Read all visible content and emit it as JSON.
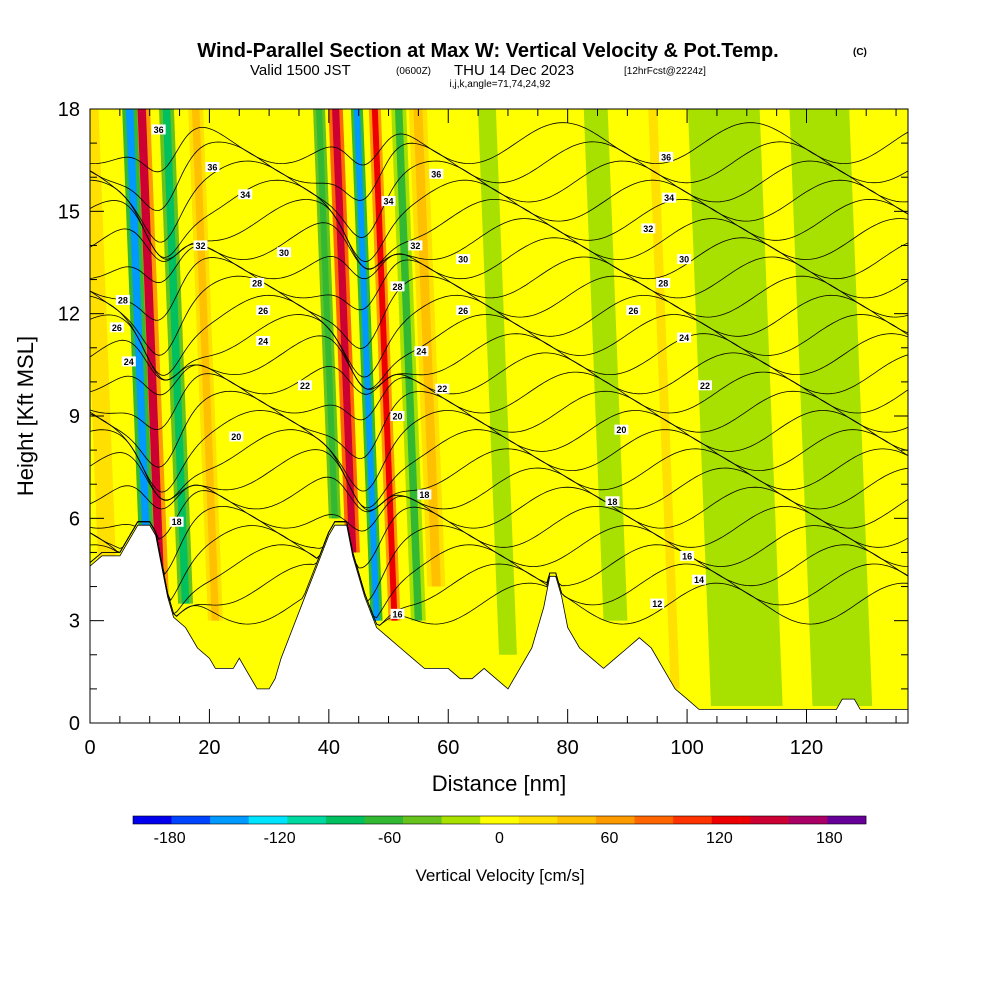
{
  "chart_data": {
    "type": "heatmap",
    "title": "Wind-Parallel Section at Max W: Vertical Velocity & Pot.Temp.",
    "title_tag": "(C)",
    "subtitle_main": "Valid 1500 JST",
    "subtitle_z": "(0600Z)",
    "subtitle_date": "THU 14 Dec 2023",
    "subtitle_fcst": "[12hrFcst@2224z]",
    "index_line": "i,j,k,angle=71,74,24,92",
    "xlabel": "Distance [nm]",
    "ylabel": "Height [Kft MSL]",
    "xlim": [
      0,
      137
    ],
    "ylim": [
      0,
      18
    ],
    "x_ticks": [
      "0",
      "20",
      "40",
      "60",
      "80",
      "100",
      "120"
    ],
    "y_ticks": [
      "0",
      "3",
      "6",
      "9",
      "12",
      "15",
      "18"
    ],
    "colorbar": {
      "label": "Vertical Velocity [cm/s]",
      "range": [
        -200,
        200
      ],
      "ticks": [
        "-180",
        "-120",
        "-60",
        "0",
        "60",
        "120",
        "180"
      ],
      "colors": [
        "#0000ee",
        "#0044ff",
        "#0099ff",
        "#00e5ff",
        "#00d9a0",
        "#00c060",
        "#33b833",
        "#66c21c",
        "#a8e000",
        "#ffff00",
        "#ffe000",
        "#ffc000",
        "#ff9900",
        "#ff6600",
        "#ff3300",
        "#ee0000",
        "#cc0033",
        "#aa0066",
        "#660099"
      ]
    },
    "bands": [
      {
        "x": 12,
        "w": 2.8,
        "w_cms": 145,
        "z0": 2.8
      },
      {
        "x": 9.5,
        "w": 2.5,
        "w_cms": -140,
        "z0": 5
      },
      {
        "x": 16,
        "w": 2.5,
        "w_cms": -75,
        "z0": 3.5
      },
      {
        "x": 21,
        "w": 2.5,
        "w_cms": 50,
        "z0": 3
      },
      {
        "x": 44,
        "w": 2.4,
        "w_cms": 150,
        "z0": 5
      },
      {
        "x": 48,
        "w": 2,
        "w_cms": -145,
        "z0": 3
      },
      {
        "x": 51,
        "w": 2,
        "w_cms": 135,
        "z0": 3
      },
      {
        "x": 55,
        "w": 2.5,
        "w_cms": -55,
        "z0": 3
      },
      {
        "x": 58,
        "w": 3,
        "w_cms": 45,
        "z0": 4
      },
      {
        "x": 41,
        "w": 2,
        "w_cms": -70,
        "z0": 6
      },
      {
        "x": 3,
        "w": 3,
        "w_cms": 30,
        "z0": 4
      },
      {
        "x": 70,
        "w": 6,
        "w_cms": -15,
        "z0": 2
      },
      {
        "x": 88,
        "w": 8,
        "w_cms": -20,
        "z0": 3
      },
      {
        "x": 98,
        "w": 3,
        "w_cms": 20,
        "z0": 1
      },
      {
        "x": 110,
        "w": 12,
        "w_cms": -25,
        "z0": 0.5
      },
      {
        "x": 126,
        "w": 10,
        "w_cms": -22,
        "z0": 0.5
      }
    ],
    "terrain": [
      [
        0,
        4.6
      ],
      [
        2,
        4.9
      ],
      [
        5,
        4.9
      ],
      [
        6,
        5.2
      ],
      [
        7,
        5.5
      ],
      [
        8,
        5.8
      ],
      [
        10,
        5.8
      ],
      [
        11,
        5.5
      ],
      [
        12,
        4.6
      ],
      [
        13,
        3.7
      ],
      [
        14,
        3.1
      ],
      [
        16,
        2.8
      ],
      [
        18,
        2.2
      ],
      [
        20,
        1.9
      ],
      [
        21,
        1.6
      ],
      [
        24,
        1.6
      ],
      [
        25,
        1.9
      ],
      [
        26,
        1.6
      ],
      [
        27,
        1.3
      ],
      [
        28,
        1
      ],
      [
        30,
        1
      ],
      [
        31,
        1.3
      ],
      [
        32,
        1.9
      ],
      [
        34,
        2.8
      ],
      [
        36,
        3.7
      ],
      [
        38,
        4.6
      ],
      [
        40,
        5.5
      ],
      [
        41,
        5.8
      ],
      [
        43,
        5.8
      ],
      [
        44,
        4.9
      ],
      [
        46,
        3.7
      ],
      [
        48,
        2.8
      ],
      [
        50,
        2.5
      ],
      [
        52,
        2.2
      ],
      [
        54,
        1.9
      ],
      [
        56,
        1.6
      ],
      [
        58,
        1.6
      ],
      [
        60,
        1.6
      ],
      [
        62,
        1.3
      ],
      [
        64,
        1.3
      ],
      [
        66,
        1.6
      ],
      [
        68,
        1.3
      ],
      [
        70,
        1
      ],
      [
        71,
        1.3
      ],
      [
        72,
        1.6
      ],
      [
        74,
        2.2
      ],
      [
        76,
        3.4
      ],
      [
        77,
        4.3
      ],
      [
        78,
        4.3
      ],
      [
        79,
        3.7
      ],
      [
        80,
        2.8
      ],
      [
        82,
        2.2
      ],
      [
        84,
        1.9
      ],
      [
        86,
        1.6
      ],
      [
        88,
        1.9
      ],
      [
        90,
        2.2
      ],
      [
        92,
        2.5
      ],
      [
        94,
        2.2
      ],
      [
        96,
        1.6
      ],
      [
        98,
        1
      ],
      [
        100,
        0.7
      ],
      [
        102,
        0.4
      ],
      [
        110,
        0.4
      ],
      [
        120,
        0.4
      ],
      [
        125,
        0.4
      ],
      [
        126,
        0.7
      ],
      [
        128,
        0.7
      ],
      [
        129,
        0.4
      ],
      [
        137,
        0.4
      ]
    ],
    "theta_labels": [
      {
        "x": 11.5,
        "z": 17.4,
        "text": "36"
      },
      {
        "x": 20.5,
        "z": 16.3,
        "text": "36"
      },
      {
        "x": 26,
        "z": 15.5,
        "text": "34"
      },
      {
        "x": 18.5,
        "z": 14,
        "text": "32"
      },
      {
        "x": 32.5,
        "z": 13.8,
        "text": "30"
      },
      {
        "x": 28,
        "z": 12.9,
        "text": "28"
      },
      {
        "x": 5.5,
        "z": 12.4,
        "text": "28"
      },
      {
        "x": 29,
        "z": 12.1,
        "text": "26"
      },
      {
        "x": 4.5,
        "z": 11.6,
        "text": "26"
      },
      {
        "x": 29,
        "z": 11.2,
        "text": "24"
      },
      {
        "x": 6.5,
        "z": 10.6,
        "text": "24"
      },
      {
        "x": 36,
        "z": 9.9,
        "text": "22"
      },
      {
        "x": 24.5,
        "z": 8.4,
        "text": "20"
      },
      {
        "x": 14.5,
        "z": 5.9,
        "text": "18"
      },
      {
        "x": 58,
        "z": 16.1,
        "text": "36"
      },
      {
        "x": 50,
        "z": 15.3,
        "text": "34"
      },
      {
        "x": 54.5,
        "z": 14,
        "text": "32"
      },
      {
        "x": 62.5,
        "z": 13.6,
        "text": "30"
      },
      {
        "x": 51.5,
        "z": 12.8,
        "text": "28"
      },
      {
        "x": 62.5,
        "z": 12.1,
        "text": "26"
      },
      {
        "x": 55.5,
        "z": 10.9,
        "text": "24"
      },
      {
        "x": 59,
        "z": 9.8,
        "text": "22"
      },
      {
        "x": 51.5,
        "z": 9,
        "text": "20"
      },
      {
        "x": 56,
        "z": 6.7,
        "text": "18"
      },
      {
        "x": 51.5,
        "z": 3.2,
        "text": "16"
      },
      {
        "x": 96.5,
        "z": 16.6,
        "text": "36"
      },
      {
        "x": 97,
        "z": 15.4,
        "text": "34"
      },
      {
        "x": 93.5,
        "z": 14.5,
        "text": "32"
      },
      {
        "x": 99.5,
        "z": 13.6,
        "text": "30"
      },
      {
        "x": 96,
        "z": 12.9,
        "text": "28"
      },
      {
        "x": 91,
        "z": 12.1,
        "text": "26"
      },
      {
        "x": 99.5,
        "z": 11.3,
        "text": "24"
      },
      {
        "x": 103,
        "z": 9.9,
        "text": "22"
      },
      {
        "x": 89,
        "z": 8.6,
        "text": "20"
      },
      {
        "x": 87.5,
        "z": 6.5,
        "text": "18"
      },
      {
        "x": 100,
        "z": 4.9,
        "text": "16"
      },
      {
        "x": 102,
        "z": 4.2,
        "text": "14"
      },
      {
        "x": 95,
        "z": 3.5,
        "text": "12"
      }
    ]
  }
}
